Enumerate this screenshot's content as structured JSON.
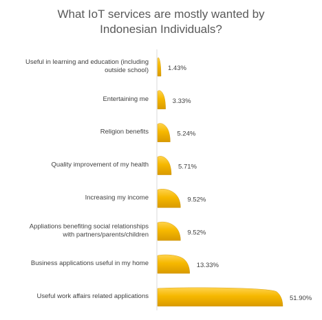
{
  "chart_data": {
    "type": "bar",
    "orientation": "horizontal",
    "title_lines": [
      "What IoT services are mostly wanted by",
      "Indonesian Individuals?"
    ],
    "xlabel": "",
    "ylabel": "",
    "xlim": [
      0,
      51.9
    ],
    "grid": false,
    "legend": "none",
    "bar_color": "#F4B400",
    "bar_shadow_color": "#C98F00",
    "axis_color": "#D9D9D9",
    "categories": [
      [
        "Useful in learning and education (including",
        "outside school)"
      ],
      [
        "Entertaining me"
      ],
      [
        "Religion benefits"
      ],
      [
        "Quality improvement of my health"
      ],
      [
        "Increasing my income"
      ],
      [
        "Appliations benefiting social relationships",
        "with partners/parents/children"
      ],
      [
        "Business applications useful in my home"
      ],
      [
        "Useful work affairs related applications"
      ]
    ],
    "values": [
      1.43,
      3.33,
      5.24,
      5.71,
      9.52,
      9.52,
      13.33,
      51.9
    ],
    "value_labels": [
      "1.43%",
      "3.33%",
      "5.24%",
      "5.71%",
      "9.52%",
      "9.52%",
      "13.33%",
      "51.90%"
    ]
  }
}
